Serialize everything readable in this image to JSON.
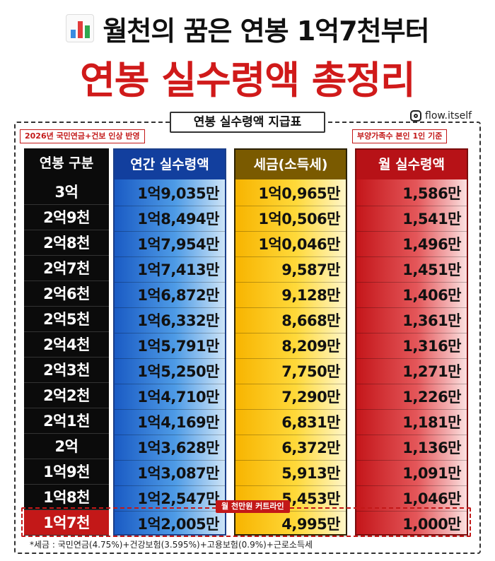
{
  "header": {
    "icon": "bar-chart-icon",
    "title": "월천의 꿈은 연봉 1억7천부터",
    "subtitle": "연봉 실수령액 총정리"
  },
  "board": {
    "title": "연봉 실수령액 지급표",
    "instagram_icon": "instagram-icon",
    "instagram_handle": "flow.itself",
    "note_left": "2026년 국민연금+건보 인상 반영",
    "note_right": "부양가족수 본인 1인 기준",
    "highlight_label": "월 천만원 커트라인"
  },
  "table": {
    "headers": [
      "연봉 구분",
      "연간 실수령액",
      "세금(소득세)",
      "월 실수령액"
    ],
    "rows": [
      [
        "3억",
        "1억9,035만",
        "1억0,965만",
        "1,586만"
      ],
      [
        "2억9천",
        "1억8,494만",
        "1억0,506만",
        "1,541만"
      ],
      [
        "2억8천",
        "1억7,954만",
        "1억0,046만",
        "1,496만"
      ],
      [
        "2억7천",
        "1억7,413만",
        "9,587만",
        "1,451만"
      ],
      [
        "2억6천",
        "1억6,872만",
        "9,128만",
        "1,406만"
      ],
      [
        "2억5천",
        "1억6,332만",
        "8,668만",
        "1,361만"
      ],
      [
        "2억4천",
        "1억5,791만",
        "8,209만",
        "1,316만"
      ],
      [
        "2억3천",
        "1억5,250만",
        "7,750만",
        "1,271만"
      ],
      [
        "2억2천",
        "1억4,710만",
        "7,290만",
        "1,226만"
      ],
      [
        "2억1천",
        "1억4,169만",
        "6,831만",
        "1,181만"
      ],
      [
        "2억",
        "1억3,628만",
        "6,372만",
        "1,136만"
      ],
      [
        "1억9천",
        "1억3,087만",
        "5,913만",
        "1,091만"
      ],
      [
        "1억8천",
        "1억2,547만",
        "5,453만",
        "1,046만"
      ],
      [
        "1억7천",
        "1억2,005만",
        "4,995만",
        "1,000만"
      ]
    ]
  },
  "footnote": "*세금 : 국민연금(4.75%)+건강보험(3.595%)+고용보험(0.9%)+근로소득세",
  "colors": {
    "title_red": "#d01a1a",
    "col_salary": "#0b0b0b",
    "col_annual": "#1a5bc4",
    "col_tax": "#f7b400",
    "col_monthly": "#c4161a",
    "highlight": "#c31818"
  }
}
